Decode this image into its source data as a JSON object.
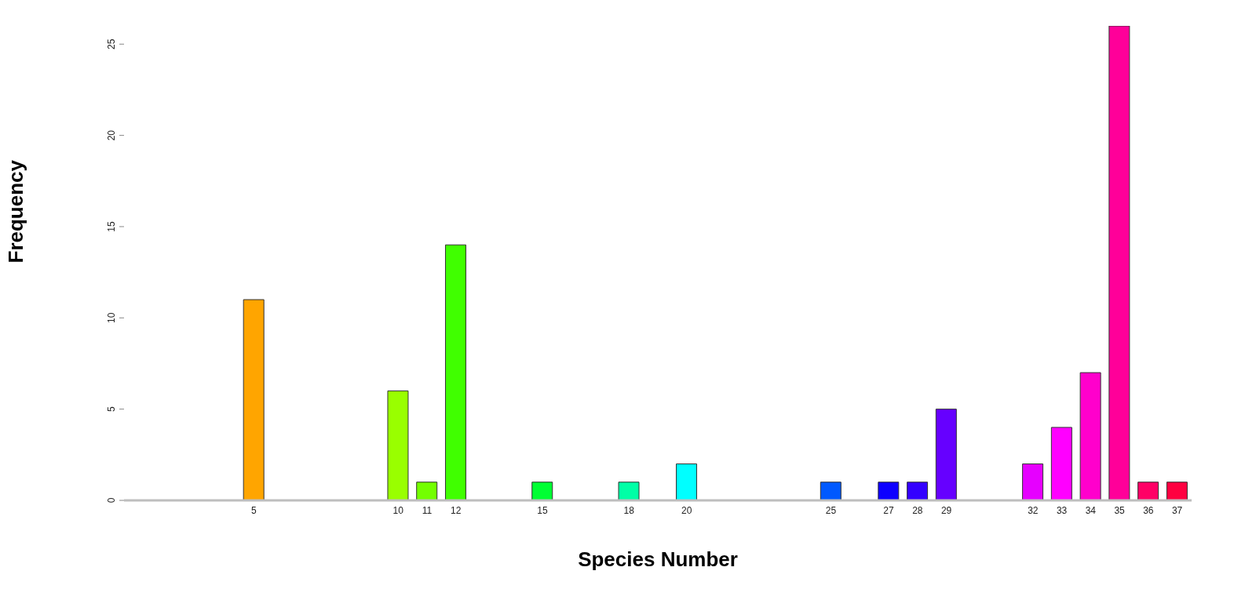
{
  "chart_data": {
    "type": "bar",
    "xlabel": "Species Number",
    "ylabel": "Frequency",
    "categories": [
      null,
      null,
      null,
      null,
      "5",
      null,
      null,
      null,
      null,
      "10",
      "11",
      "12",
      null,
      null,
      "15",
      null,
      null,
      "18",
      null,
      "20",
      null,
      null,
      null,
      null,
      "25",
      null,
      "27",
      "28",
      "29",
      null,
      null,
      "32",
      "33",
      "34",
      "35",
      "36",
      "37"
    ],
    "values": [
      0,
      0,
      0,
      0,
      11,
      0,
      0,
      0,
      0,
      6,
      1,
      14,
      0,
      0,
      1,
      0,
      0,
      1,
      0,
      2,
      0,
      0,
      0,
      0,
      1,
      0,
      1,
      1,
      5,
      0,
      0,
      2,
      4,
      7,
      26,
      1,
      1
    ],
    "colors": [
      "#bebebe",
      "#bebebe",
      "#bebebe",
      "#bebebe",
      "#ffa500",
      "#bebebe",
      "#bebebe",
      "#bebebe",
      "#bebebe",
      "#99ff00",
      "#73ff00",
      "#40ff00",
      "#bebebe",
      "#bebebe",
      "#00ff33",
      "#bebebe",
      "#bebebe",
      "#00ffa6",
      "#bebebe",
      "#00ffff",
      "#bebebe",
      "#bebebe",
      "#bebebe",
      "#bebebe",
      "#0059ff",
      "#bebebe",
      "#0d00ff",
      "#3300ff",
      "#6600ff",
      "#bebebe",
      "#bebebe",
      "#e600ff",
      "#ff00ff",
      "#ff00cc",
      "#ff0099",
      "#ff0066",
      "#ff0040"
    ],
    "ylim": [
      0,
      26
    ],
    "yticks": [
      0,
      5,
      10,
      15,
      20,
      25
    ]
  }
}
